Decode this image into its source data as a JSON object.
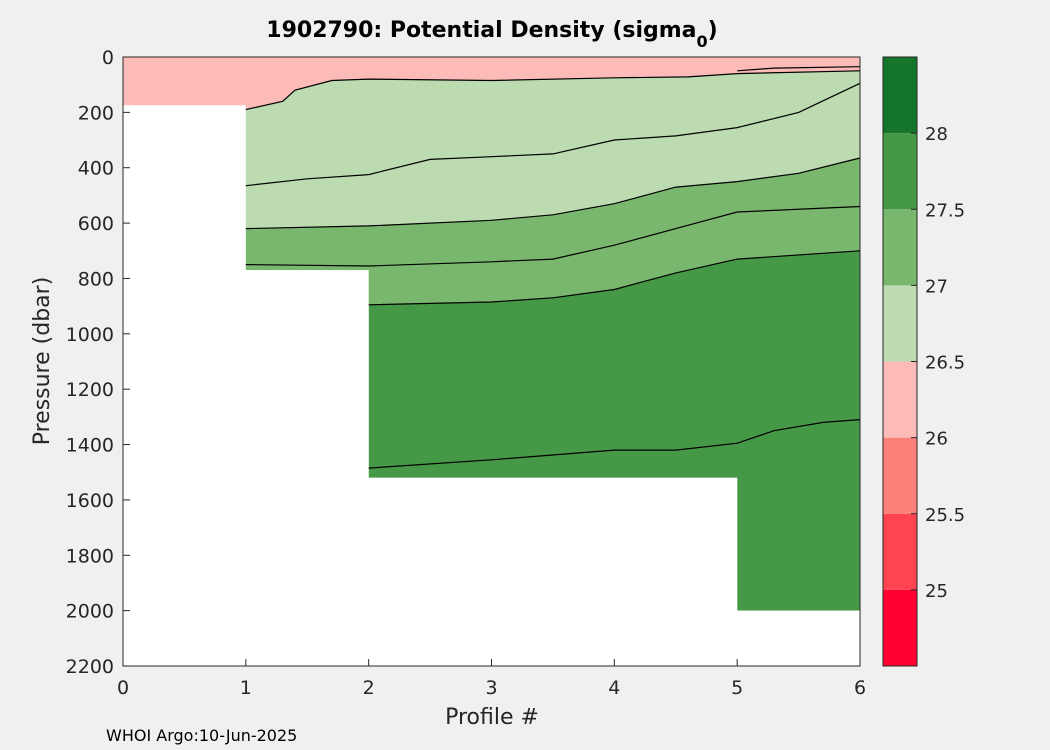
{
  "chart_data": {
    "type": "heatmap",
    "title": "1902790: Potential Density (sigma",
    "title_subscript": "0",
    "title_close": ")",
    "xlabel": "Profile #",
    "ylabel": "Pressure (dbar)",
    "xlim": [
      0,
      6
    ],
    "ylim": [
      0,
      2200
    ],
    "y_reversed": true,
    "x_ticks": [
      "0",
      "1",
      "2",
      "3",
      "4",
      "5",
      "6"
    ],
    "y_ticks": [
      "0",
      "200",
      "400",
      "600",
      "800",
      "1000",
      "1200",
      "1400",
      "1600",
      "1800",
      "2000",
      "2200"
    ],
    "colorbar": {
      "levels": [
        24.5,
        25,
        25.5,
        26,
        26.5,
        27,
        27.5,
        28,
        28.5
      ],
      "tick_labels": [
        "25",
        "25.5",
        "26",
        "26.5",
        "27",
        "27.5",
        "28"
      ],
      "colors": [
        "#ff0033",
        "#ff4350",
        "#fa8079",
        "#fcbbb6",
        "#bcdbb0",
        "#7ab76e",
        "#459845",
        "#15752b"
      ]
    },
    "profiles": [
      {
        "x": 1,
        "max_pressure": 770
      },
      {
        "x": 2,
        "max_pressure": 1520
      },
      {
        "x": 3,
        "max_pressure": 1520
      },
      {
        "x": 4,
        "max_pressure": 1520
      },
      {
        "x": 5,
        "max_pressure": 2000
      },
      {
        "x": 6,
        "max_pressure": 2000
      }
    ],
    "isopycnals": [
      {
        "level": 26.5,
        "points": [
          [
            1,
            190
          ],
          [
            1.3,
            160
          ],
          [
            1.4,
            120
          ],
          [
            1.7,
            85
          ],
          [
            2,
            80
          ],
          [
            3,
            85
          ],
          [
            4,
            75
          ],
          [
            4.6,
            72
          ],
          [
            5,
            60
          ],
          [
            6,
            50
          ]
        ]
      },
      {
        "level": 26.5,
        "points": [
          [
            5.0,
            50
          ],
          [
            5.3,
            40
          ],
          [
            6.0,
            35
          ]
        ]
      },
      {
        "level": 26.6,
        "points": [
          [
            1,
            465
          ],
          [
            1.5,
            440
          ],
          [
            2,
            425
          ],
          [
            2.5,
            370
          ],
          [
            3,
            360
          ],
          [
            3.5,
            350
          ],
          [
            4,
            300
          ],
          [
            4.5,
            285
          ],
          [
            5,
            255
          ],
          [
            5.5,
            200
          ],
          [
            6,
            95
          ]
        ]
      },
      {
        "level": 27.0,
        "points": [
          [
            1,
            620
          ],
          [
            2,
            610
          ],
          [
            3,
            590
          ],
          [
            3.5,
            570
          ],
          [
            4,
            530
          ],
          [
            4.5,
            470
          ],
          [
            5,
            450
          ],
          [
            5.5,
            420
          ],
          [
            6,
            365
          ]
        ]
      },
      {
        "level": 27.2,
        "points": [
          [
            1,
            750
          ],
          [
            2,
            755
          ],
          [
            3,
            740
          ],
          [
            3.5,
            730
          ],
          [
            4,
            680
          ],
          [
            4.5,
            620
          ],
          [
            5,
            560
          ],
          [
            6,
            540
          ]
        ]
      },
      {
        "level": 27.5,
        "points": [
          [
            2,
            895
          ],
          [
            3,
            885
          ],
          [
            3.5,
            870
          ],
          [
            4,
            840
          ],
          [
            4.5,
            780
          ],
          [
            5,
            730
          ],
          [
            6,
            700
          ]
        ]
      },
      {
        "level": 27.7,
        "points": [
          [
            2,
            1485
          ],
          [
            3,
            1455
          ],
          [
            4,
            1420
          ],
          [
            4.5,
            1420
          ],
          [
            5,
            1395
          ],
          [
            5.3,
            1350
          ],
          [
            5.7,
            1320
          ],
          [
            6,
            1310
          ]
        ]
      }
    ]
  },
  "footer": "WHOI Argo:10-Jun-2025"
}
